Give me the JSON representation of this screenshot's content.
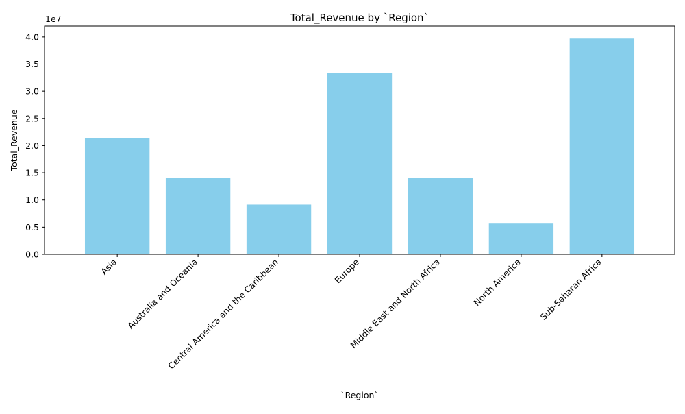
{
  "chart_data": {
    "type": "bar",
    "title": "Total_Revenue by `Region`",
    "xlabel": "`Region`",
    "ylabel": "Total_Revenue",
    "y_multiplier_label": "1e7",
    "y_scale_factor": 10000000,
    "ylim": [
      0,
      42000000
    ],
    "yticks": [
      0,
      5000000,
      10000000,
      15000000,
      20000000,
      25000000,
      30000000,
      35000000,
      40000000
    ],
    "ytick_labels": [
      "0.0",
      "0.5",
      "1.0",
      "1.5",
      "2.0",
      "2.5",
      "3.0",
      "3.5",
      "4.0"
    ],
    "categories": [
      "Asia",
      "Australia and Oceania",
      "Central America and the Caribbean",
      "Europe",
      "Middle East and North Africa",
      "North America",
      "Sub-Saharan Africa"
    ],
    "values": [
      21350000,
      14100000,
      9150000,
      33350000,
      14050000,
      5650000,
      39700000
    ],
    "bar_color": "#87ceeb",
    "grid": false,
    "legend": "none"
  }
}
